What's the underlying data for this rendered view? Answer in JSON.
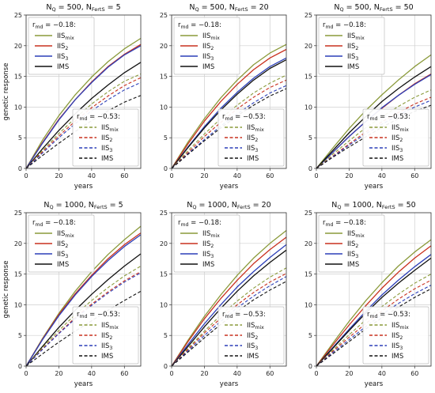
{
  "colors": {
    "IISmix": "#8a9a3a",
    "IIS2": "#c8301e",
    "IIS3": "#2c3fb8",
    "IMS": "#111111",
    "grid": "#cfcfcf",
    "frame": "#333333"
  },
  "legend_labels": {
    "IISmix": {
      "base": "IIS",
      "sub": "mix"
    },
    "IIS2": {
      "base": "IIS",
      "sub": "2"
    },
    "IIS3": {
      "base": "IIS",
      "sub": "3"
    },
    "IMS": {
      "base": "IMS",
      "sub": ""
    }
  },
  "chart_data": [
    {
      "type": "line",
      "title": "N_Q = 500,   N_FertS = 5",
      "title_parts": {
        "nq": "500",
        "nf": "5"
      },
      "xlabel": "years",
      "ylabel": "genetic response",
      "xlim": [
        0,
        70
      ],
      "ylim": [
        0,
        25
      ],
      "xticks": [
        0,
        20,
        40,
        60
      ],
      "yticks": [
        0,
        5,
        10,
        15,
        20,
        25
      ],
      "grid": true,
      "legend_groups": [
        {
          "label": "r_md = −0.18:",
          "rmd": "−0.18",
          "placement": "top-left",
          "style": "solid"
        },
        {
          "label": "r_md = −0.53:",
          "rmd": "−0.53",
          "placement": "bottom-right",
          "style": "dashed"
        }
      ],
      "x": [
        0,
        10,
        20,
        30,
        40,
        50,
        60,
        70
      ],
      "series": [
        {
          "name": "IISmix",
          "rmd": "−0.18",
          "style": "solid",
          "values": [
            0,
            4.6,
            8.6,
            12.0,
            14.9,
            17.4,
            19.5,
            21.2
          ]
        },
        {
          "name": "IIS2",
          "rmd": "−0.18",
          "style": "solid",
          "values": [
            0,
            4.2,
            8.0,
            11.2,
            14.1,
            16.6,
            18.6,
            20.2
          ]
        },
        {
          "name": "IIS3",
          "rmd": "−0.18",
          "style": "solid",
          "values": [
            0,
            4.1,
            7.9,
            11.2,
            14.0,
            16.5,
            18.5,
            20.0
          ]
        },
        {
          "name": "IMS",
          "rmd": "−0.18",
          "style": "solid",
          "values": [
            0,
            3.2,
            6.2,
            8.9,
            11.4,
            13.6,
            15.6,
            17.3
          ]
        },
        {
          "name": "IISmix",
          "rmd": "−0.53",
          "style": "dashed",
          "values": [
            0,
            2.9,
            5.7,
            8.2,
            10.5,
            12.5,
            14.2,
            15.4
          ]
        },
        {
          "name": "IIS2",
          "rmd": "−0.53",
          "style": "dashed",
          "values": [
            0,
            2.7,
            5.3,
            7.7,
            9.9,
            11.8,
            13.5,
            14.8
          ]
        },
        {
          "name": "IIS3",
          "rmd": "−0.53",
          "style": "dashed",
          "values": [
            0,
            2.5,
            5.0,
            7.3,
            9.4,
            11.2,
            12.8,
            14.0
          ]
        },
        {
          "name": "IMS",
          "rmd": "−0.53",
          "style": "dashed",
          "values": [
            0,
            2.1,
            4.1,
            6.0,
            7.8,
            9.4,
            10.8,
            11.9
          ]
        }
      ]
    },
    {
      "type": "line",
      "title": "N_Q = 500,   N_FertS = 20",
      "title_parts": {
        "nq": "500",
        "nf": "20"
      },
      "xlabel": "years",
      "ylabel": "",
      "xlim": [
        0,
        70
      ],
      "ylim": [
        0,
        25
      ],
      "xticks": [
        0,
        20,
        40,
        60
      ],
      "yticks": [
        0,
        5,
        10,
        15,
        20,
        25
      ],
      "grid": true,
      "legend_groups": [
        {
          "label": "r_md = −0.18:",
          "rmd": "−0.18",
          "placement": "top-left",
          "style": "solid"
        },
        {
          "label": "r_md = −0.53:",
          "rmd": "−0.53",
          "placement": "bottom-right",
          "style": "dashed"
        }
      ],
      "x": [
        0,
        10,
        20,
        30,
        40,
        50,
        60,
        70
      ],
      "series": [
        {
          "name": "IISmix",
          "rmd": "−0.18",
          "style": "solid",
          "values": [
            0,
            4.3,
            8.1,
            11.5,
            14.4,
            16.9,
            18.8,
            20.2
          ]
        },
        {
          "name": "IIS2",
          "rmd": "−0.18",
          "style": "solid",
          "values": [
            0,
            4.0,
            7.7,
            10.9,
            13.7,
            16.1,
            18.0,
            19.4
          ]
        },
        {
          "name": "IIS3",
          "rmd": "−0.18",
          "style": "solid",
          "values": [
            0,
            3.5,
            6.8,
            9.8,
            12.4,
            14.7,
            16.6,
            18.0
          ]
        },
        {
          "name": "IMS",
          "rmd": "−0.18",
          "style": "solid",
          "values": [
            0,
            3.4,
            6.6,
            9.5,
            12.1,
            14.4,
            16.3,
            17.7
          ]
        },
        {
          "name": "IISmix",
          "rmd": "−0.53",
          "style": "dashed",
          "values": [
            0,
            2.9,
            5.6,
            8.1,
            10.3,
            12.3,
            13.9,
            15.2
          ]
        },
        {
          "name": "IIS2",
          "rmd": "−0.53",
          "style": "dashed",
          "values": [
            0,
            2.6,
            5.2,
            7.5,
            9.7,
            11.6,
            13.2,
            14.4
          ]
        },
        {
          "name": "IIS3",
          "rmd": "−0.53",
          "style": "dashed",
          "values": [
            0,
            2.4,
            4.7,
            6.9,
            8.9,
            10.7,
            12.3,
            13.5
          ]
        },
        {
          "name": "IMS",
          "rmd": "−0.53",
          "style": "dashed",
          "values": [
            0,
            2.3,
            4.5,
            6.6,
            8.6,
            10.3,
            11.8,
            13.0
          ]
        }
      ]
    },
    {
      "type": "line",
      "title": "N_Q = 500,   N_FertS = 50",
      "title_parts": {
        "nq": "500",
        "nf": "50"
      },
      "xlabel": "years",
      "ylabel": "",
      "xlim": [
        0,
        70
      ],
      "ylim": [
        0,
        25
      ],
      "xticks": [
        0,
        20,
        40,
        60
      ],
      "yticks": [
        0,
        5,
        10,
        15,
        20,
        25
      ],
      "grid": true,
      "legend_groups": [
        {
          "label": "r_md = −0.18:",
          "rmd": "−0.18",
          "placement": "top-left",
          "style": "solid"
        },
        {
          "label": "r_md = −0.53:",
          "rmd": "−0.53",
          "placement": "bottom-right",
          "style": "dashed"
        }
      ],
      "x": [
        0,
        10,
        20,
        30,
        40,
        50,
        60,
        70
      ],
      "series": [
        {
          "name": "IISmix",
          "rmd": "−0.18",
          "style": "solid",
          "values": [
            0,
            3.3,
            6.5,
            9.4,
            12.0,
            14.4,
            16.6,
            18.5
          ]
        },
        {
          "name": "IIS2",
          "rmd": "−0.18",
          "style": "solid",
          "values": [
            0,
            2.6,
            5.2,
            7.6,
            9.8,
            11.9,
            13.8,
            15.4
          ]
        },
        {
          "name": "IIS3",
          "rmd": "−0.18",
          "style": "solid",
          "values": [
            0,
            2.6,
            5.2,
            7.6,
            9.9,
            11.9,
            13.7,
            15.3
          ]
        },
        {
          "name": "IMS",
          "rmd": "−0.18",
          "style": "solid",
          "values": [
            0,
            2.9,
            5.8,
            8.4,
            10.9,
            13.0,
            14.9,
            16.6
          ]
        },
        {
          "name": "IISmix",
          "rmd": "−0.53",
          "style": "dashed",
          "values": [
            0,
            2.3,
            4.5,
            6.6,
            8.4,
            10.1,
            11.6,
            12.8
          ]
        },
        {
          "name": "IIS2",
          "rmd": "−0.53",
          "style": "dashed",
          "values": [
            0,
            2.0,
            4.0,
            5.9,
            7.6,
            9.1,
            10.5,
            11.6
          ]
        },
        {
          "name": "IIS3",
          "rmd": "−0.53",
          "style": "dashed",
          "values": [
            0,
            1.9,
            3.8,
            5.6,
            7.2,
            8.7,
            10.0,
            11.1
          ]
        },
        {
          "name": "IMS",
          "rmd": "−0.53",
          "style": "dashed",
          "values": [
            0,
            1.8,
            3.5,
            5.1,
            6.7,
            8.1,
            9.3,
            10.3
          ]
        }
      ]
    },
    {
      "type": "line",
      "title": "N_Q = 1000,   N_FertS = 5",
      "title_parts": {
        "nq": "1000",
        "nf": "5"
      },
      "xlabel": "years",
      "ylabel": "genetic response",
      "xlim": [
        0,
        70
      ],
      "ylim": [
        0,
        25
      ],
      "xticks": [
        0,
        20,
        40,
        60
      ],
      "yticks": [
        0,
        5,
        10,
        15,
        20,
        25
      ],
      "grid": true,
      "legend_groups": [
        {
          "label": "r_md = −0.18:",
          "rmd": "−0.18",
          "placement": "top-left",
          "style": "solid"
        },
        {
          "label": "r_md = −0.53:",
          "rmd": "−0.53",
          "placement": "bottom-right",
          "style": "dashed"
        }
      ],
      "x": [
        0,
        10,
        20,
        30,
        40,
        50,
        60,
        70
      ],
      "series": [
        {
          "name": "IISmix",
          "rmd": "−0.18",
          "style": "solid",
          "values": [
            0,
            4.5,
            8.6,
            12.2,
            15.4,
            18.2,
            20.6,
            22.8
          ]
        },
        {
          "name": "IIS2",
          "rmd": "−0.18",
          "style": "solid",
          "values": [
            0,
            4.4,
            8.4,
            11.8,
            14.8,
            17.5,
            19.8,
            21.7
          ]
        },
        {
          "name": "IIS3",
          "rmd": "−0.18",
          "style": "solid",
          "values": [
            0,
            4.3,
            8.2,
            11.6,
            14.6,
            17.2,
            19.5,
            21.4
          ]
        },
        {
          "name": "IMS",
          "rmd": "−0.18",
          "style": "solid",
          "values": [
            0,
            3.2,
            6.3,
            9.1,
            11.7,
            14.1,
            16.3,
            18.3
          ]
        },
        {
          "name": "IISmix",
          "rmd": "−0.53",
          "style": "dashed",
          "values": [
            0,
            3.0,
            5.8,
            8.4,
            10.7,
            12.8,
            14.7,
            16.3
          ]
        },
        {
          "name": "IIS2",
          "rmd": "−0.53",
          "style": "dashed",
          "values": [
            0,
            2.8,
            5.4,
            7.9,
            10.1,
            12.1,
            13.9,
            15.4
          ]
        },
        {
          "name": "IIS3",
          "rmd": "−0.53",
          "style": "dashed",
          "values": [
            0,
            2.7,
            5.3,
            7.7,
            9.9,
            11.9,
            13.7,
            15.2
          ]
        },
        {
          "name": "IMS",
          "rmd": "−0.53",
          "style": "dashed",
          "values": [
            0,
            2.0,
            3.9,
            5.7,
            7.4,
            9.1,
            10.7,
            12.2
          ]
        }
      ]
    },
    {
      "type": "line",
      "title": "N_Q = 1000,   N_FertS = 20",
      "title_parts": {
        "nq": "1000",
        "nf": "20"
      },
      "xlabel": "years",
      "ylabel": "",
      "xlim": [
        0,
        70
      ],
      "ylim": [
        0,
        25
      ],
      "xticks": [
        0,
        20,
        40,
        60
      ],
      "yticks": [
        0,
        5,
        10,
        15,
        20,
        25
      ],
      "grid": true,
      "legend_groups": [
        {
          "label": "r_md = −0.18:",
          "rmd": "−0.18",
          "placement": "top-left",
          "style": "solid"
        },
        {
          "label": "r_md = −0.53:",
          "rmd": "−0.53",
          "placement": "bottom-right",
          "style": "dashed"
        }
      ],
      "x": [
        0,
        10,
        20,
        30,
        40,
        50,
        60,
        70
      ],
      "series": [
        {
          "name": "IISmix",
          "rmd": "−0.18",
          "style": "solid",
          "values": [
            0,
            4.2,
            8.1,
            11.6,
            14.8,
            17.6,
            20.0,
            22.1
          ]
        },
        {
          "name": "IIS2",
          "rmd": "−0.18",
          "style": "solid",
          "values": [
            0,
            4.0,
            7.7,
            11.0,
            14.0,
            16.7,
            19.0,
            21.0
          ]
        },
        {
          "name": "IIS3",
          "rmd": "−0.18",
          "style": "solid",
          "values": [
            0,
            3.5,
            6.9,
            10.0,
            12.9,
            15.4,
            17.7,
            19.8
          ]
        },
        {
          "name": "IMS",
          "rmd": "−0.18",
          "style": "solid",
          "values": [
            0,
            3.2,
            6.4,
            9.4,
            12.2,
            14.7,
            16.9,
            18.9
          ]
        },
        {
          "name": "IISmix",
          "rmd": "−0.53",
          "style": "dashed",
          "values": [
            0,
            2.9,
            5.7,
            8.3,
            10.6,
            12.7,
            14.5,
            16.0
          ]
        },
        {
          "name": "IIS2",
          "rmd": "−0.53",
          "style": "dashed",
          "values": [
            0,
            2.7,
            5.4,
            7.8,
            10.0,
            12.0,
            13.7,
            15.1
          ]
        },
        {
          "name": "IIS3",
          "rmd": "−0.53",
          "style": "dashed",
          "values": [
            0,
            2.5,
            5.0,
            7.3,
            9.5,
            11.4,
            13.1,
            14.6
          ]
        },
        {
          "name": "IMS",
          "rmd": "−0.53",
          "style": "dashed",
          "values": [
            0,
            2.3,
            4.6,
            6.8,
            8.9,
            10.8,
            12.4,
            13.8
          ]
        }
      ]
    },
    {
      "type": "line",
      "title": "N_Q = 1000,   N_FertS = 50",
      "title_parts": {
        "nq": "1000",
        "nf": "50"
      },
      "xlabel": "years",
      "ylabel": "",
      "xlim": [
        0,
        70
      ],
      "ylim": [
        0,
        25
      ],
      "xticks": [
        0,
        20,
        40,
        60
      ],
      "yticks": [
        0,
        5,
        10,
        15,
        20,
        25
      ],
      "grid": true,
      "legend_groups": [
        {
          "label": "r_md = −0.18:",
          "rmd": "−0.18",
          "placement": "top-left",
          "style": "solid"
        },
        {
          "label": "r_md = −0.53:",
          "rmd": "−0.53",
          "placement": "bottom-right",
          "style": "dashed"
        }
      ],
      "x": [
        0,
        10,
        20,
        30,
        40,
        50,
        60,
        70
      ],
      "series": [
        {
          "name": "IISmix",
          "rmd": "−0.18",
          "style": "solid",
          "values": [
            0,
            3.7,
            7.3,
            10.6,
            13.6,
            16.3,
            18.6,
            20.6
          ]
        },
        {
          "name": "IIS2",
          "rmd": "−0.18",
          "style": "solid",
          "values": [
            0,
            3.4,
            6.7,
            9.8,
            12.7,
            15.3,
            17.6,
            19.6
          ]
        },
        {
          "name": "IIS3",
          "rmd": "−0.18",
          "style": "solid",
          "values": [
            0,
            3.0,
            6.0,
            8.9,
            11.6,
            14.0,
            16.2,
            18.2
          ]
        },
        {
          "name": "IMS",
          "rmd": "−0.18",
          "style": "solid",
          "values": [
            0,
            2.9,
            5.8,
            8.6,
            11.2,
            13.5,
            15.6,
            17.6
          ]
        },
        {
          "name": "IISmix",
          "rmd": "−0.53",
          "style": "dashed",
          "values": [
            0,
            2.6,
            5.1,
            7.5,
            9.7,
            11.7,
            13.5,
            15.0
          ]
        },
        {
          "name": "IIS2",
          "rmd": "−0.53",
          "style": "dashed",
          "values": [
            0,
            2.4,
            4.7,
            6.9,
            9.0,
            10.9,
            12.6,
            14.0
          ]
        },
        {
          "name": "IIS3",
          "rmd": "−0.53",
          "style": "dashed",
          "values": [
            0,
            2.2,
            4.3,
            6.4,
            8.4,
            10.2,
            11.8,
            13.2
          ]
        },
        {
          "name": "IMS",
          "rmd": "−0.53",
          "style": "dashed",
          "values": [
            0,
            2.0,
            4.0,
            6.0,
            7.9,
            9.6,
            11.2,
            12.6
          ]
        }
      ]
    }
  ]
}
